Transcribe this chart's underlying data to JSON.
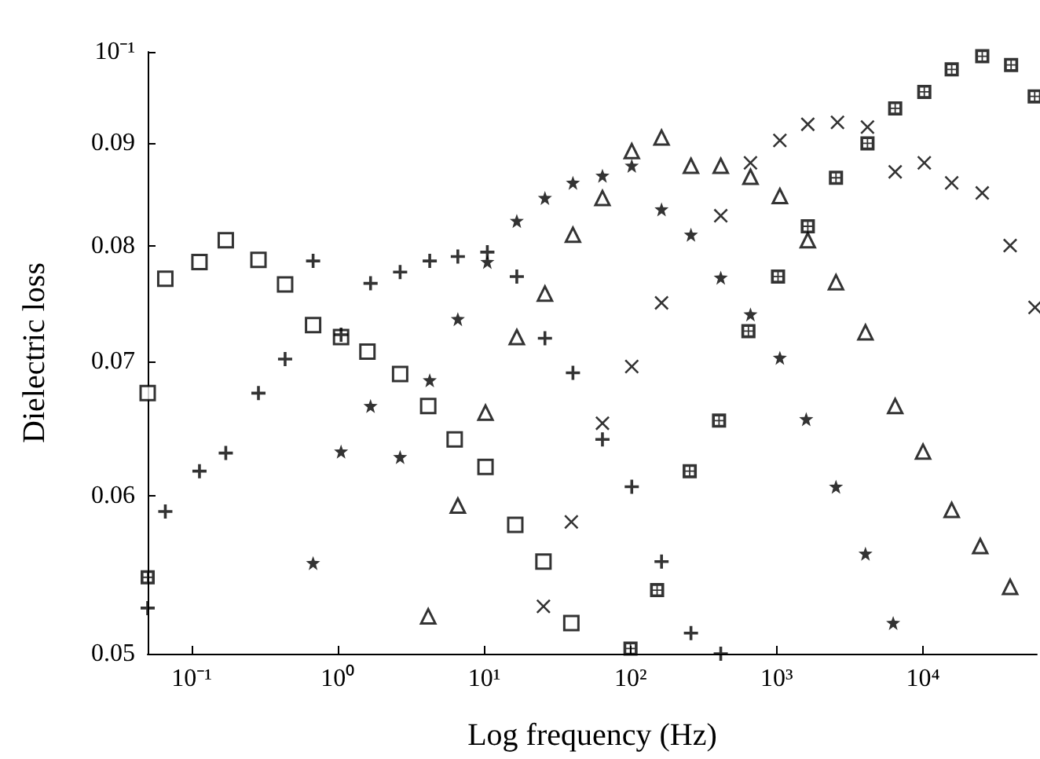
{
  "chart_data": {
    "type": "scatter",
    "xlabel": "Log frequency (Hz)",
    "ylabel": "Dielectric loss",
    "log": "xy",
    "grid": false,
    "xlim": [
      0.05,
      60000
    ],
    "ylim": [
      0.05,
      0.1
    ],
    "xticks": [
      {
        "value": 0.1,
        "label": "10⁻¹"
      },
      {
        "value": 1,
        "label": "10⁰"
      },
      {
        "value": 10,
        "label": "10¹"
      },
      {
        "value": 100,
        "label": "10²"
      },
      {
        "value": 1000,
        "label": "10³"
      },
      {
        "value": 10000,
        "label": "10⁴"
      }
    ],
    "yticks": [
      0.05,
      0.06,
      0.07,
      0.08,
      0.09,
      {
        "value": 0.1,
        "label": "10⁻¹"
      }
    ],
    "series": [
      {
        "marker": "square",
        "color": "#000000",
        "x": [
          0.05,
          0.066,
          0.113,
          0.171,
          0.286,
          0.435,
          0.676,
          1.05,
          1.59,
          2.66,
          4.14,
          6.28,
          10.2,
          16.3,
          25.4,
          39.4
        ],
        "values": [
          0.0675,
          0.077,
          0.0785,
          0.0805,
          0.0787,
          0.0765,
          0.073,
          0.072,
          0.0708,
          0.069,
          0.0665,
          0.064,
          0.062,
          0.058,
          0.0556,
          0.0518
        ]
      },
      {
        "marker": "plus",
        "color": "#000000",
        "x": [
          0.05,
          0.066,
          0.113,
          0.171,
          0.286,
          0.435,
          0.676,
          1.05,
          1.67,
          2.66,
          4.24,
          6.6,
          10.5,
          16.7,
          26,
          40.4,
          64.3,
          102,
          163,
          259,
          414
        ],
        "values": [
          0.0527,
          0.0589,
          0.0617,
          0.063,
          0.0675,
          0.0702,
          0.0786,
          0.0722,
          0.0766,
          0.0776,
          0.0786,
          0.079,
          0.0794,
          0.0772,
          0.0719,
          0.0691,
          0.064,
          0.0606,
          0.0556,
          0.0512,
          0.05
        ]
      },
      {
        "marker": "star",
        "color": "#000000",
        "x": [
          0.676,
          1.05,
          1.67,
          2.66,
          4.24,
          6.6,
          10.5,
          16.7,
          26,
          40.4,
          64.3,
          102,
          163,
          259,
          414,
          661,
          1050,
          1590,
          2540,
          4040,
          6250
        ],
        "values": [
          0.0555,
          0.0631,
          0.0665,
          0.0627,
          0.0685,
          0.0735,
          0.0785,
          0.0823,
          0.0845,
          0.086,
          0.0867,
          0.0877,
          0.0834,
          0.081,
          0.0771,
          0.0739,
          0.0703,
          0.0655,
          0.0606,
          0.0561,
          0.0518
        ]
      },
      {
        "marker": "triangle",
        "color": "#000000",
        "x": [
          4.14,
          6.6,
          10.2,
          16.7,
          26,
          40.4,
          64.3,
          102,
          163,
          259,
          414,
          661,
          1050,
          1630,
          2540,
          4040,
          6450,
          10000,
          15700,
          24600,
          39400
        ],
        "values": [
          0.0522,
          0.0593,
          0.066,
          0.072,
          0.0757,
          0.081,
          0.0845,
          0.0892,
          0.0906,
          0.0877,
          0.0877,
          0.0866,
          0.0847,
          0.0805,
          0.0767,
          0.0724,
          0.0665,
          0.0631,
          0.059,
          0.0566,
          0.054
        ]
      },
      {
        "marker": "cross",
        "color": "#000000",
        "x": [
          25.4,
          39.4,
          64.3,
          102,
          163,
          414,
          661,
          1050,
          1630,
          2600,
          4170,
          6450,
          10200,
          15700,
          25400,
          39400,
          58300
        ],
        "values": [
          0.0528,
          0.0582,
          0.0652,
          0.0696,
          0.0749,
          0.0828,
          0.088,
          0.0903,
          0.092,
          0.0922,
          0.0917,
          0.0871,
          0.088,
          0.086,
          0.085,
          0.08,
          0.0745
        ]
      },
      {
        "color": "#000000",
        "x": [
          0.05,
          100,
          152,
          254,
          403,
          640,
          1020,
          1630,
          2540,
          4170,
          6450,
          10200,
          15700,
          25400,
          40000,
          58000
        ],
        "values": [
          0.0546,
          0.0503,
          0.0538,
          0.0617,
          0.0654,
          0.0725,
          0.0772,
          0.0818,
          0.0865,
          0.09,
          0.0937,
          0.0955,
          0.098,
          0.0995,
          0.0985,
          0.095
        ]
      }
    ]
  }
}
